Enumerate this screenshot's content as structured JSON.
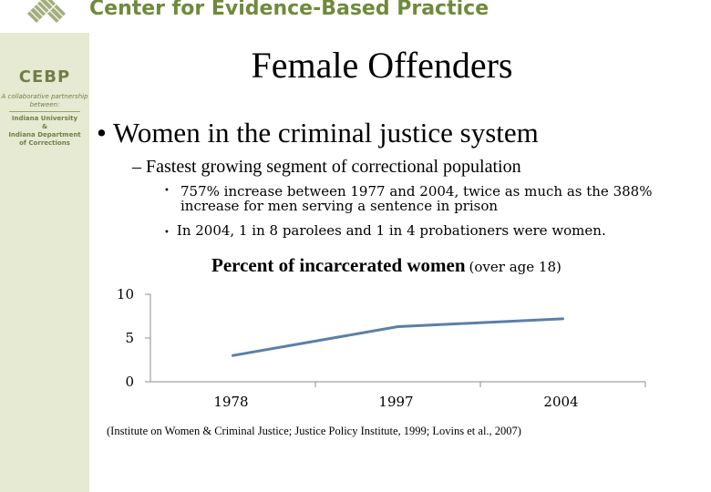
{
  "header": {
    "org_name": "Center for Evidence-Based Practice"
  },
  "sidebar": {
    "logo": "CEBP",
    "tagline": "A collaborative partnership between:",
    "org_lines": "Indiana University\n&\nIndiana Department\nof Corrections"
  },
  "slide": {
    "title": "Female Offenders",
    "bullet1": "• Women in the criminal justice system",
    "bullet2": "– Fastest growing segment of correctional population",
    "bullet3_dot": "•",
    "bullet3": "757% increase between 1977 and 2004, twice as much as the 388% increase for men serving a sentence in prison",
    "bullet4_dot": "•",
    "bullet4": "In 2004, 1 in 8 parolees and 1 in 4 probationers were women.",
    "citation": "(Institute on Women & Criminal Justice; Justice Policy Institute, 1999; Lovins et al., 2007)"
  },
  "chart_data": {
    "type": "line",
    "title": "Percent of incarcerated women",
    "subtitle": "(over age 18)",
    "categories": [
      "1978",
      "1997",
      "2004"
    ],
    "series": [
      {
        "values": [
          3.0,
          6.3,
          7.2
        ]
      }
    ],
    "ylim": [
      0,
      10
    ],
    "yticks": [
      "0",
      "5",
      "10"
    ],
    "line_color": "#5b7fa8",
    "axis_color": "#8c8c8c"
  }
}
